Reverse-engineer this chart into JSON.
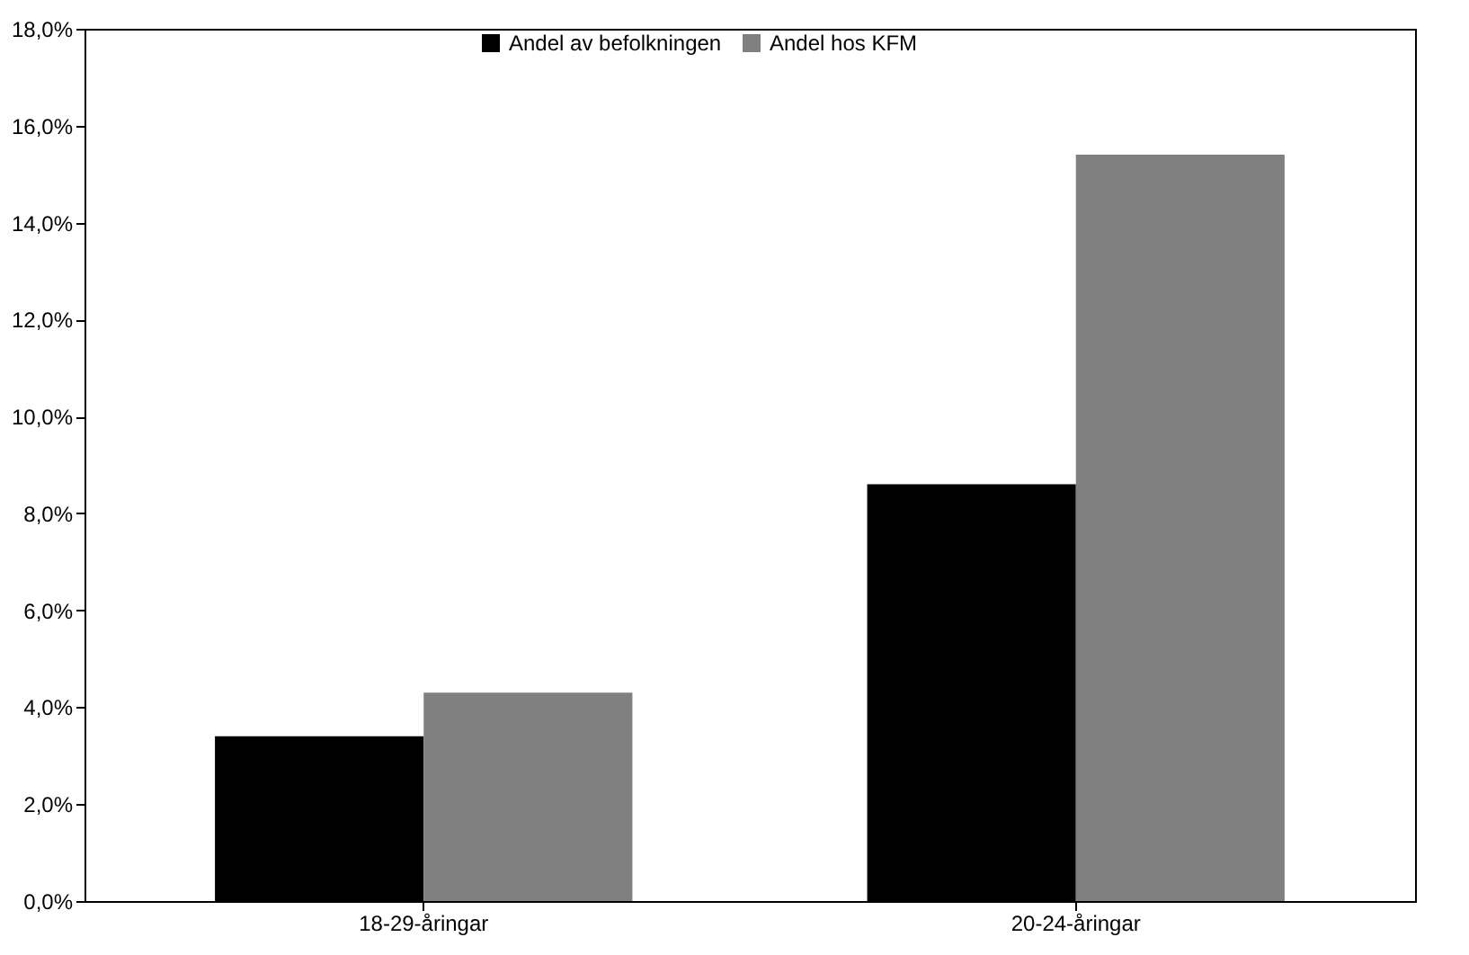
{
  "chart_data": {
    "type": "bar",
    "categories": [
      "18-29-åringar",
      "20-24-åringar"
    ],
    "series": [
      {
        "name": "Andel av befolkningen",
        "color": "#000000",
        "values": [
          3.4,
          8.6
        ]
      },
      {
        "name": "Andel hos KFM",
        "color": "#808080",
        "values": [
          4.3,
          15.4
        ]
      }
    ],
    "ylim": [
      0,
      18
    ],
    "yticks": [
      {
        "value": 0,
        "label": "0,0%"
      },
      {
        "value": 2,
        "label": "2,0%"
      },
      {
        "value": 4,
        "label": "4,0%"
      },
      {
        "value": 6,
        "label": "6,0%"
      },
      {
        "value": 8,
        "label": "8,0%"
      },
      {
        "value": 10,
        "label": "10,0%"
      },
      {
        "value": 12,
        "label": "12,0%"
      },
      {
        "value": 14,
        "label": "14,0%"
      },
      {
        "value": 16,
        "label": "16,0%"
      },
      {
        "value": 18,
        "label": "18,0%"
      }
    ],
    "grid": false,
    "legend": "top"
  }
}
